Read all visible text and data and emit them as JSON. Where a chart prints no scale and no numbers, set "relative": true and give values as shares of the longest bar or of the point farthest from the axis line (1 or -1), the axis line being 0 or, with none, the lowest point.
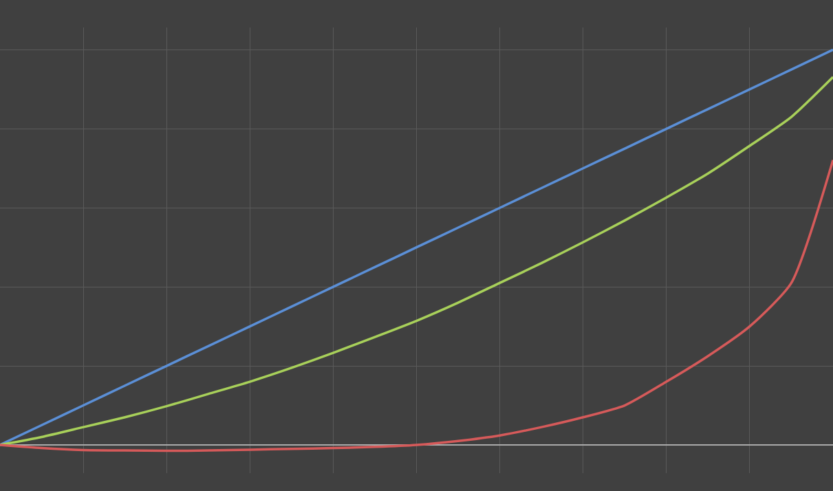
{
  "chart_data": {
    "type": "line",
    "relative": true,
    "grid": true,
    "marker": "none",
    "line_style": "solid",
    "categories": [
      null,
      null,
      null,
      null,
      null,
      null,
      null,
      null,
      null,
      null,
      null,
      null,
      null,
      null,
      null,
      null,
      null,
      null,
      null,
      null,
      null
    ],
    "series": [
      {
        "color": "#5b8fd6",
        "values": [
          0,
          0.05,
          0.1,
          0.15,
          0.2,
          0.25,
          0.3,
          0.35,
          0.4,
          0.45,
          0.5,
          0.55,
          0.6,
          0.65,
          0.7,
          0.75,
          0.8,
          0.85,
          0.9,
          0.95,
          1
        ]
      },
      {
        "color": "#a8d05a",
        "values": [
          0,
          0.02,
          0.045,
          0.07,
          0.098,
          0.129,
          0.16,
          0.195,
          0.233,
          0.273,
          0.314,
          0.36,
          0.41,
          0.46,
          0.513,
          0.568,
          0.626,
          0.687,
          0.757,
          0.83,
          0.931
        ]
      },
      {
        "color": "#d65a5a",
        "values": [
          0,
          -0.008,
          -0.013,
          -0.014,
          -0.015,
          -0.014,
          -0.012,
          -0.01,
          -0.008,
          -0.005,
          0,
          0.01,
          0.024,
          0.045,
          0.07,
          0.1,
          0.16,
          0.225,
          0.3,
          0.41,
          0.721
        ]
      }
    ]
  }
}
